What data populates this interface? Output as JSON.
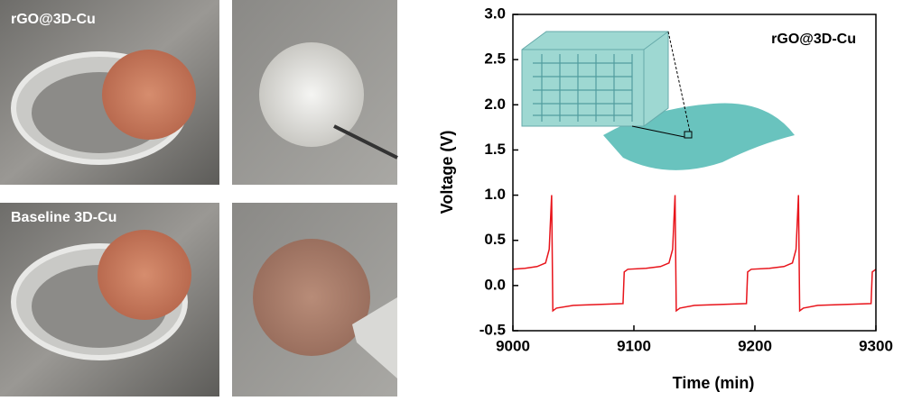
{
  "photos": {
    "top_label": "rGO@3D-Cu",
    "bottom_label": "Baseline 3D-Cu"
  },
  "chart_data": {
    "type": "line",
    "annotation": "rGO@3D-Cu",
    "xlabel": "Time (min)",
    "ylabel": "Voltage (V)",
    "color": "#e8141b",
    "x": [
      9000,
      9010,
      9020,
      9027,
      9030,
      9032,
      9033,
      9036,
      9050,
      9091,
      9092,
      9095,
      9110,
      9122,
      9129,
      9132,
      9134,
      9135,
      9138,
      9150,
      9193,
      9194,
      9197,
      9212,
      9224,
      9231,
      9234,
      9236,
      9237,
      9240,
      9252,
      9296,
      9297,
      9300
    ],
    "values": [
      0.18,
      0.19,
      0.21,
      0.25,
      0.4,
      1.0,
      -0.28,
      -0.25,
      -0.22,
      -0.2,
      0.15,
      0.18,
      0.19,
      0.21,
      0.25,
      0.4,
      1.0,
      -0.28,
      -0.25,
      -0.22,
      -0.2,
      0.15,
      0.18,
      0.19,
      0.21,
      0.25,
      0.4,
      1.0,
      -0.28,
      -0.25,
      -0.22,
      -0.2,
      0.15,
      0.18
    ],
    "xlim": [
      9000,
      9300
    ],
    "ylim": [
      -0.5,
      3.0
    ],
    "xticks": [
      9000,
      9100,
      9200,
      9300
    ],
    "yticks": [
      -0.5,
      {
        "value": 0,
        "label": "0.0"
      },
      0.5,
      {
        "value": 1,
        "label": "1.0"
      },
      1.5,
      {
        "value": 2,
        "label": "2.0"
      },
      2.5,
      {
        "value": 3,
        "label": "3.0"
      }
    ]
  }
}
